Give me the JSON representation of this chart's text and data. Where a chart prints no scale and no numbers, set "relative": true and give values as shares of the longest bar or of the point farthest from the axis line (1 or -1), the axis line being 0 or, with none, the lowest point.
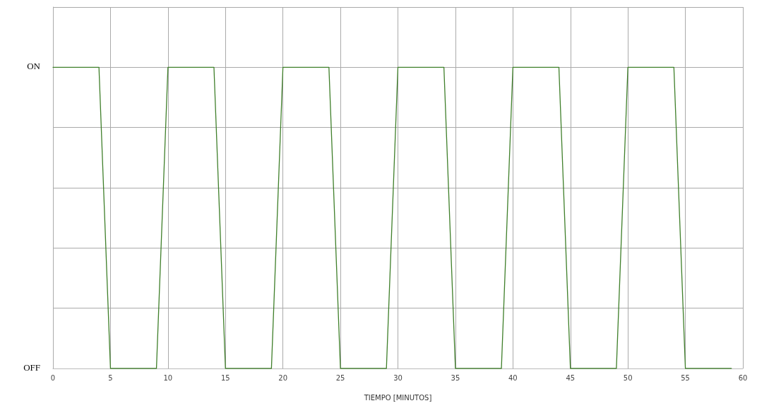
{
  "chart_data": {
    "type": "line",
    "xlabel": "TIEMPO [MINUTOS]",
    "x": [
      0,
      4,
      5,
      9,
      10,
      14,
      15,
      19,
      20,
      24,
      25,
      29,
      30,
      34,
      35,
      39,
      40,
      44,
      45,
      49,
      50,
      54,
      55,
      59
    ],
    "series": [
      {
        "color": "#3f7f2a",
        "values": [
          1,
          1,
          0,
          0,
          1,
          1,
          0,
          0,
          1,
          1,
          0,
          0,
          1,
          1,
          0,
          0,
          1,
          1,
          0,
          0,
          1,
          1,
          0,
          0
        ]
      }
    ],
    "relative": true,
    "annotations": [
      "ON",
      "OFF"
    ],
    "xlim": [
      0,
      60
    ],
    "xticks": [
      0,
      5,
      10,
      15,
      20,
      25,
      30,
      35,
      40,
      45,
      50,
      55,
      60
    ],
    "grid": true,
    "marker": "none",
    "line_style": "solid"
  }
}
